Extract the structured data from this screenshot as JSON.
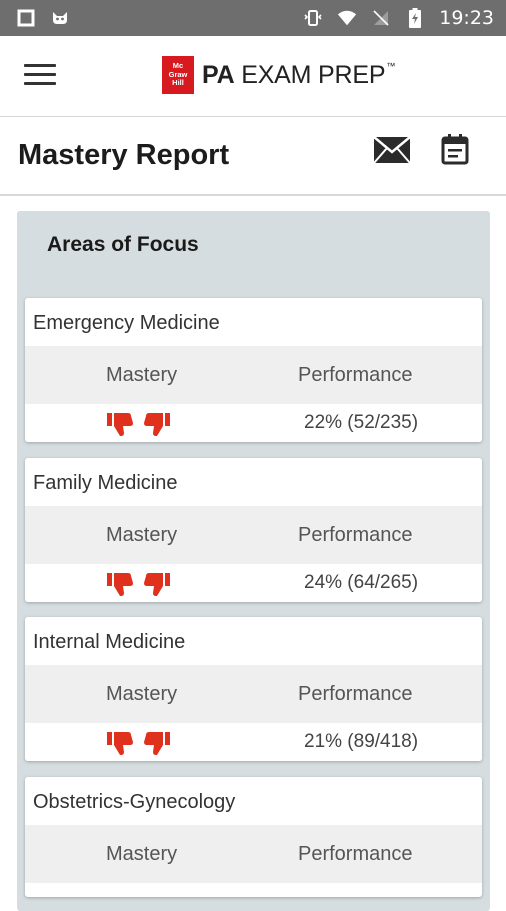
{
  "status_bar": {
    "time": "19:23"
  },
  "app": {
    "logo_box_lines": [
      "Mc",
      "Graw",
      "Hill"
    ],
    "logo_prefix": "PA",
    "logo_text": "EXAM PREP",
    "logo_tm": "™"
  },
  "page": {
    "title": "Mastery Report"
  },
  "focus": {
    "title": "Areas of Focus",
    "columns": {
      "mastery": "Mastery",
      "performance": "Performance"
    },
    "items": [
      {
        "name": "Emergency Medicine",
        "performance": "22% (52/235)",
        "thumbs_down": 2
      },
      {
        "name": "Family Medicine",
        "performance": "24% (64/265)",
        "thumbs_down": 2
      },
      {
        "name": "Internal Medicine",
        "performance": "21% (89/418)",
        "thumbs_down": 2
      },
      {
        "name": "Obstetrics-Gynecology",
        "performance": "",
        "thumbs_down": 0
      }
    ]
  },
  "colors": {
    "status_bar": "#6e6e6e",
    "brand_red": "#d71920",
    "thumb_red": "#e0311c",
    "panel": "#d5dde0",
    "header_row": "#efefef"
  },
  "icons": {
    "menu": "hamburger-icon",
    "mail": "envelope-icon",
    "calendar": "calendar-icon",
    "thumb": "thumbs-down-icon"
  }
}
